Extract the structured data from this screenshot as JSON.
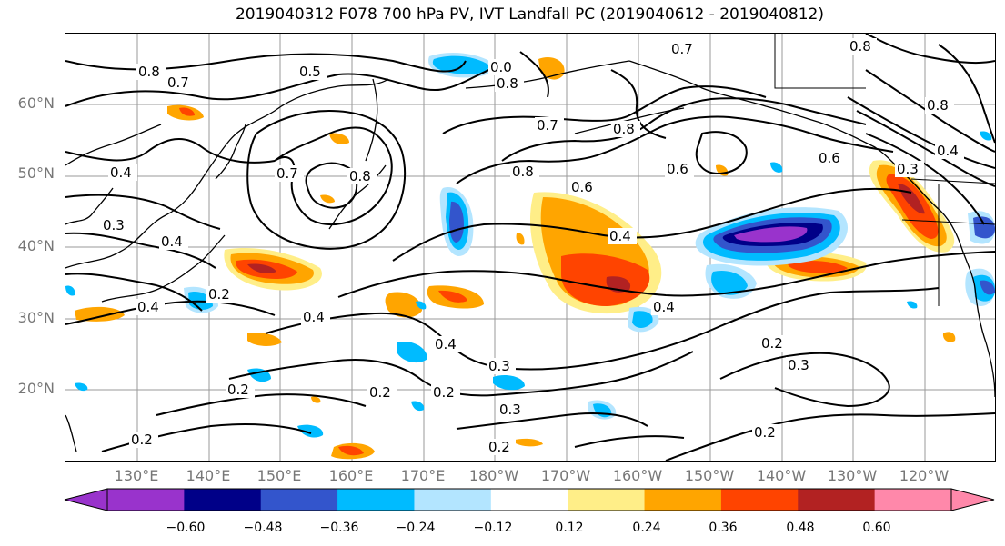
{
  "title": "2019040312 F078 700 hPa PV, IVT Landfall PC (2019040612 - 2019040812)",
  "lat_labels": [
    "60°N",
    "50°N",
    "40°N",
    "30°N",
    "20°N"
  ],
  "lon_labels": [
    "130°E",
    "140°E",
    "150°E",
    "160°E",
    "170°E",
    "180°W",
    "170°W",
    "160°W",
    "150°W",
    "140°W",
    "130°W",
    "120°W"
  ],
  "contour_labels": [
    "0.8",
    "0.7",
    "0.5",
    "0.0",
    "0.8",
    "0.7",
    "0.8",
    "0.8",
    "0.7",
    "0.4",
    "0.3",
    "0.4",
    "0.8",
    "0.7",
    "0.8",
    "0.6",
    "0.6",
    "0.3",
    "0.4",
    "0.2",
    "0.4",
    "0.8",
    "0.6",
    "0.4",
    "0.4",
    "0.4",
    "0.4",
    "0.3",
    "0.2",
    "0.3",
    "0.2",
    "0.2",
    "0.2",
    "0.3",
    "0.2",
    "0.2",
    "0.2"
  ],
  "colorbar": {
    "ticks": [
      "−0.60",
      "−0.48",
      "−0.36",
      "−0.24",
      "−0.12",
      "0.12",
      "0.24",
      "0.36",
      "0.48",
      "0.60"
    ],
    "colors": {
      "under": "#9933cc",
      "bins": [
        "#9933cc",
        "#000088",
        "#3355cc",
        "#00bbff",
        "#b3e5ff",
        "#ffffff",
        "#ffee88",
        "#ffa500",
        "#ff4400",
        "#b22222",
        "#ff88aa"
      ],
      "over": "#ff88aa"
    }
  }
}
